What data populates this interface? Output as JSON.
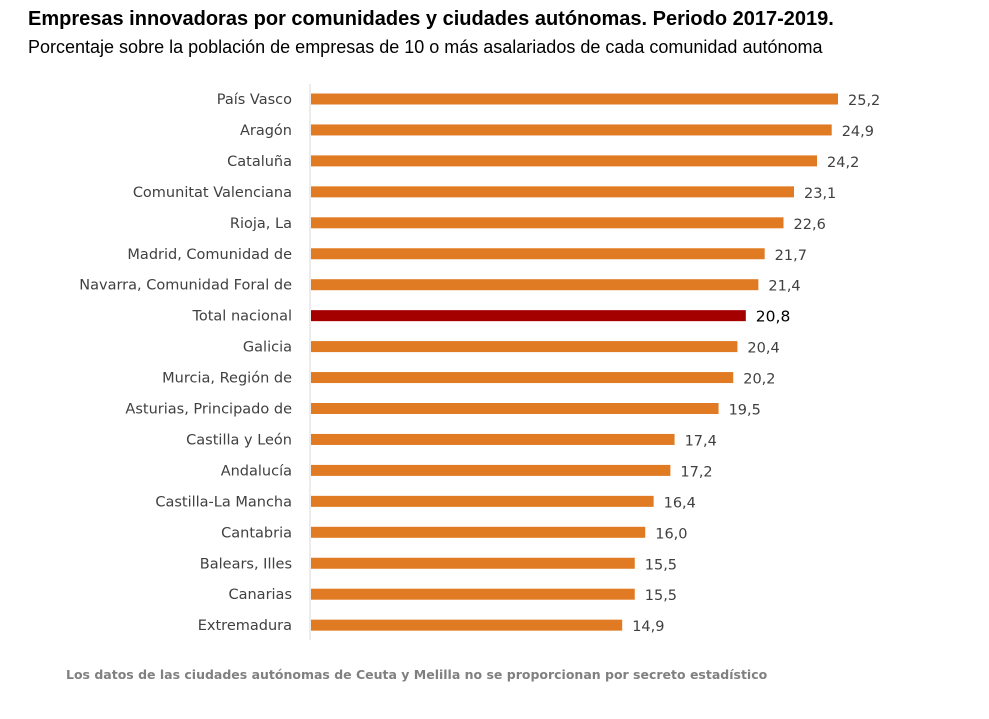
{
  "chart_data": {
    "type": "bar",
    "orientation": "horizontal",
    "title": "Empresas innovadoras por comunidades y ciudades autónomas. Periodo 2017-2019.",
    "subtitle": "Porcentaje sobre la población de empresas de 10 o más asalariados de cada comunidad autónoma",
    "categories": [
      "País Vasco",
      "Aragón",
      "Cataluña",
      "Comunitat Valenciana",
      "Rioja, La",
      "Madrid, Comunidad de",
      "Navarra, Comunidad Foral de",
      "Total nacional",
      "Galicia",
      "Murcia, Región de",
      "Asturias, Principado de",
      "Castilla y León",
      "Andalucía",
      "Castilla-La Mancha",
      "Cantabria",
      "Balears, Illes",
      "Canarias",
      "Extremadura"
    ],
    "values": [
      25.2,
      24.9,
      24.2,
      23.1,
      22.6,
      21.7,
      21.4,
      20.8,
      20.4,
      20.2,
      19.5,
      17.4,
      17.2,
      16.4,
      16.0,
      15.5,
      15.5,
      14.9
    ],
    "value_labels": [
      "25,2",
      "24,9",
      "24,2",
      "23,1",
      "22,6",
      "21,7",
      "21,4",
      "20,8",
      "20,4",
      "20,2",
      "19,5",
      "17,4",
      "17,2",
      "16,4",
      "16,0",
      "15,5",
      "15,5",
      "14,9"
    ],
    "highlight_category": "Total nacional",
    "colors": {
      "bar": "#e07b24",
      "highlight": "#a50000",
      "axis": "#d9d9d9"
    },
    "xlim": [
      0,
      25.2
    ],
    "grid": false,
    "legend": "none",
    "footnote": "Los datos de las ciudades autónomas de Ceuta y Melilla no se proporcionan por secreto estadístico"
  }
}
